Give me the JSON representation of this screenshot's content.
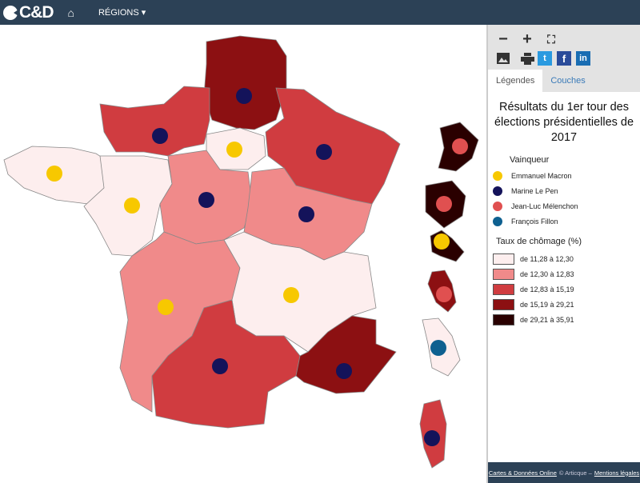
{
  "header": {
    "logo": "C&D",
    "nav_home_icon": "home-icon",
    "nav_regions": "RÉGIONS ▾"
  },
  "toolbar": {
    "icons": [
      "minus-icon",
      "plus-icon",
      "fullscreen-icon",
      "image-icon",
      "print-icon",
      "twitter-icon",
      "facebook-icon",
      "linkedin-icon"
    ]
  },
  "tabs": [
    {
      "label": "Légendes",
      "active": true
    },
    {
      "label": "Couches",
      "active": false
    }
  ],
  "legend": {
    "title": "Résultats du 1er tour des élections présidentielles de 2017",
    "winner_title": "Vainqueur",
    "winners": [
      {
        "label": "Emmanuel Macron",
        "color": "#f7c800"
      },
      {
        "label": "Marine Le Pen",
        "color": "#14135a"
      },
      {
        "label": "Jean-Luc Mélenchon",
        "color": "#e05050"
      },
      {
        "label": "François Fillon",
        "color": "#0e6090"
      }
    ],
    "classes_title": "Taux de chômage (%)",
    "classes": [
      {
        "label": "de 11,28 à 12,30",
        "color": "#fdeeee"
      },
      {
        "label": "de 12,30 à 12,83",
        "color": "#f08a8a"
      },
      {
        "label": "de 12,83 à 15,19",
        "color": "#d03c40"
      },
      {
        "label": "de 15,19 à 29,21",
        "color": "#8c1012"
      },
      {
        "label": "de 29,21 à 35,91",
        "color": "#2a0000"
      }
    ]
  },
  "regions": [
    {
      "name": "Hauts-de-France",
      "class": 3,
      "winner": 1
    },
    {
      "name": "Normandie",
      "class": 2,
      "winner": 1
    },
    {
      "name": "Île-de-France",
      "class": 0,
      "winner": 0
    },
    {
      "name": "Grand Est",
      "class": 2,
      "winner": 1
    },
    {
      "name": "Bretagne",
      "class": 0,
      "winner": 0
    },
    {
      "name": "Pays de la Loire",
      "class": 0,
      "winner": 0
    },
    {
      "name": "Centre-Val de Loire",
      "class": 1,
      "winner": 1
    },
    {
      "name": "Bourgogne-Franche-Comté",
      "class": 1,
      "winner": 1
    },
    {
      "name": "Nouvelle-Aquitaine",
      "class": 1,
      "winner": 0
    },
    {
      "name": "Auvergne-Rhône-Alpes",
      "class": 0,
      "winner": 0
    },
    {
      "name": "Occitanie",
      "class": 2,
      "winner": 1
    },
    {
      "name": "Provence-Alpes-Côte d'Azur",
      "class": 3,
      "winner": 1
    },
    {
      "name": "Corse",
      "class": 2,
      "winner": 1
    },
    {
      "name": "Guyane",
      "class": 4,
      "winner": 2
    },
    {
      "name": "La Réunion",
      "class": 4,
      "winner": 2
    },
    {
      "name": "Guadeloupe",
      "class": 4,
      "winner": 0
    },
    {
      "name": "Martinique",
      "class": 3,
      "winner": 2
    },
    {
      "name": "Mayotte",
      "class": 0,
      "winner": 3
    }
  ],
  "footer": {
    "link1": "Cartes & Données Online",
    "middle": "© Articque –",
    "link2": "Mentions légales"
  }
}
